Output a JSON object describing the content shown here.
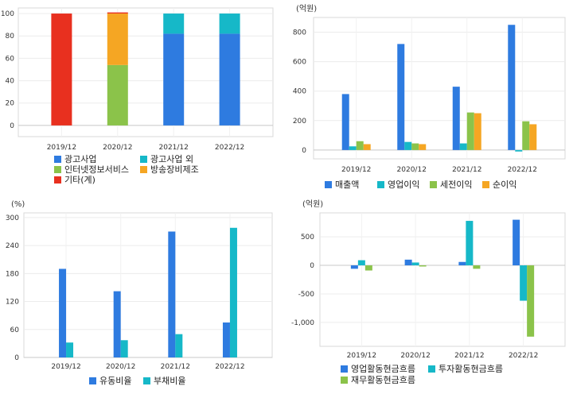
{
  "chart_data": [
    {
      "type": "bar",
      "stacked": true,
      "unit": "",
      "categories": [
        "2019/12",
        "2020/12",
        "2021/12",
        "2022/12"
      ],
      "ylim": [
        -10,
        105
      ],
      "yticks": [
        "0",
        "20",
        "40",
        "60",
        "80",
        "100"
      ],
      "yticks_values": [
        0,
        20,
        40,
        60,
        80,
        100
      ],
      "grid": true,
      "series": [
        {
          "name": "광고사업",
          "color": "#2e7be0",
          "values": [
            0,
            0,
            82,
            82
          ]
        },
        {
          "name": "광고사업 외",
          "color": "#16b8c8",
          "values": [
            0,
            0,
            18,
            18
          ]
        },
        {
          "name": "인터넷정보서비스",
          "color": "#8bc34a",
          "values": [
            0,
            54,
            0,
            0
          ]
        },
        {
          "name": "방송장비제조",
          "color": "#f5a623",
          "values": [
            0,
            46,
            0,
            0
          ]
        },
        {
          "name": "기타(계)",
          "color": "#e8301f",
          "values": [
            100,
            1,
            0,
            0
          ]
        }
      ]
    },
    {
      "type": "bar",
      "unit": "(억원)",
      "categories": [
        "2019/12",
        "2020/12",
        "2021/12",
        "2022/12"
      ],
      "ylim": [
        -60,
        900
      ],
      "yticks": [
        "0",
        "200",
        "400",
        "600",
        "800"
      ],
      "yticks_values": [
        0,
        200,
        400,
        600,
        800
      ],
      "grid": true,
      "series": [
        {
          "name": "매출액",
          "color": "#2e7be0",
          "values": [
            380,
            720,
            430,
            850
          ]
        },
        {
          "name": "영업이익",
          "color": "#16b8c8",
          "values": [
            25,
            55,
            45,
            -10
          ]
        },
        {
          "name": "세전이익",
          "color": "#8bc34a",
          "values": [
            60,
            45,
            255,
            195
          ]
        },
        {
          "name": "순이익",
          "color": "#f5a623",
          "values": [
            40,
            40,
            250,
            175
          ]
        }
      ]
    },
    {
      "type": "bar",
      "unit": "(%)",
      "categories": [
        "2019/12",
        "2020/12",
        "2021/12",
        "2022/12"
      ],
      "ylim": [
        0,
        310
      ],
      "yticks": [
        "0",
        "60",
        "120",
        "180",
        "240",
        "300"
      ],
      "yticks_values": [
        0,
        60,
        120,
        180,
        240,
        300
      ],
      "grid": true,
      "series": [
        {
          "name": "유동비율",
          "color": "#2e7be0",
          "values": [
            190,
            142,
            270,
            75
          ]
        },
        {
          "name": "부채비율",
          "color": "#16b8c8",
          "values": [
            32,
            37,
            50,
            278
          ]
        }
      ]
    },
    {
      "type": "bar",
      "unit": "(억원)",
      "categories": [
        "2019/12",
        "2020/12",
        "2021/12",
        "2022/12"
      ],
      "ylim": [
        -1420,
        920
      ],
      "yticks": [
        "500",
        "0",
        "-500",
        "-1,000"
      ],
      "yticks_values": [
        500,
        0,
        -500,
        -1000
      ],
      "grid": true,
      "series": [
        {
          "name": "영업활동현금흐름",
          "color": "#2e7be0",
          "values": [
            -60,
            100,
            60,
            800
          ]
        },
        {
          "name": "투자활동현금흐름",
          "color": "#16b8c8",
          "values": [
            90,
            50,
            780,
            -620
          ]
        },
        {
          "name": "재무활동현금흐름",
          "color": "#8bc34a",
          "values": [
            -90,
            -20,
            -60,
            -1250
          ]
        }
      ]
    }
  ]
}
